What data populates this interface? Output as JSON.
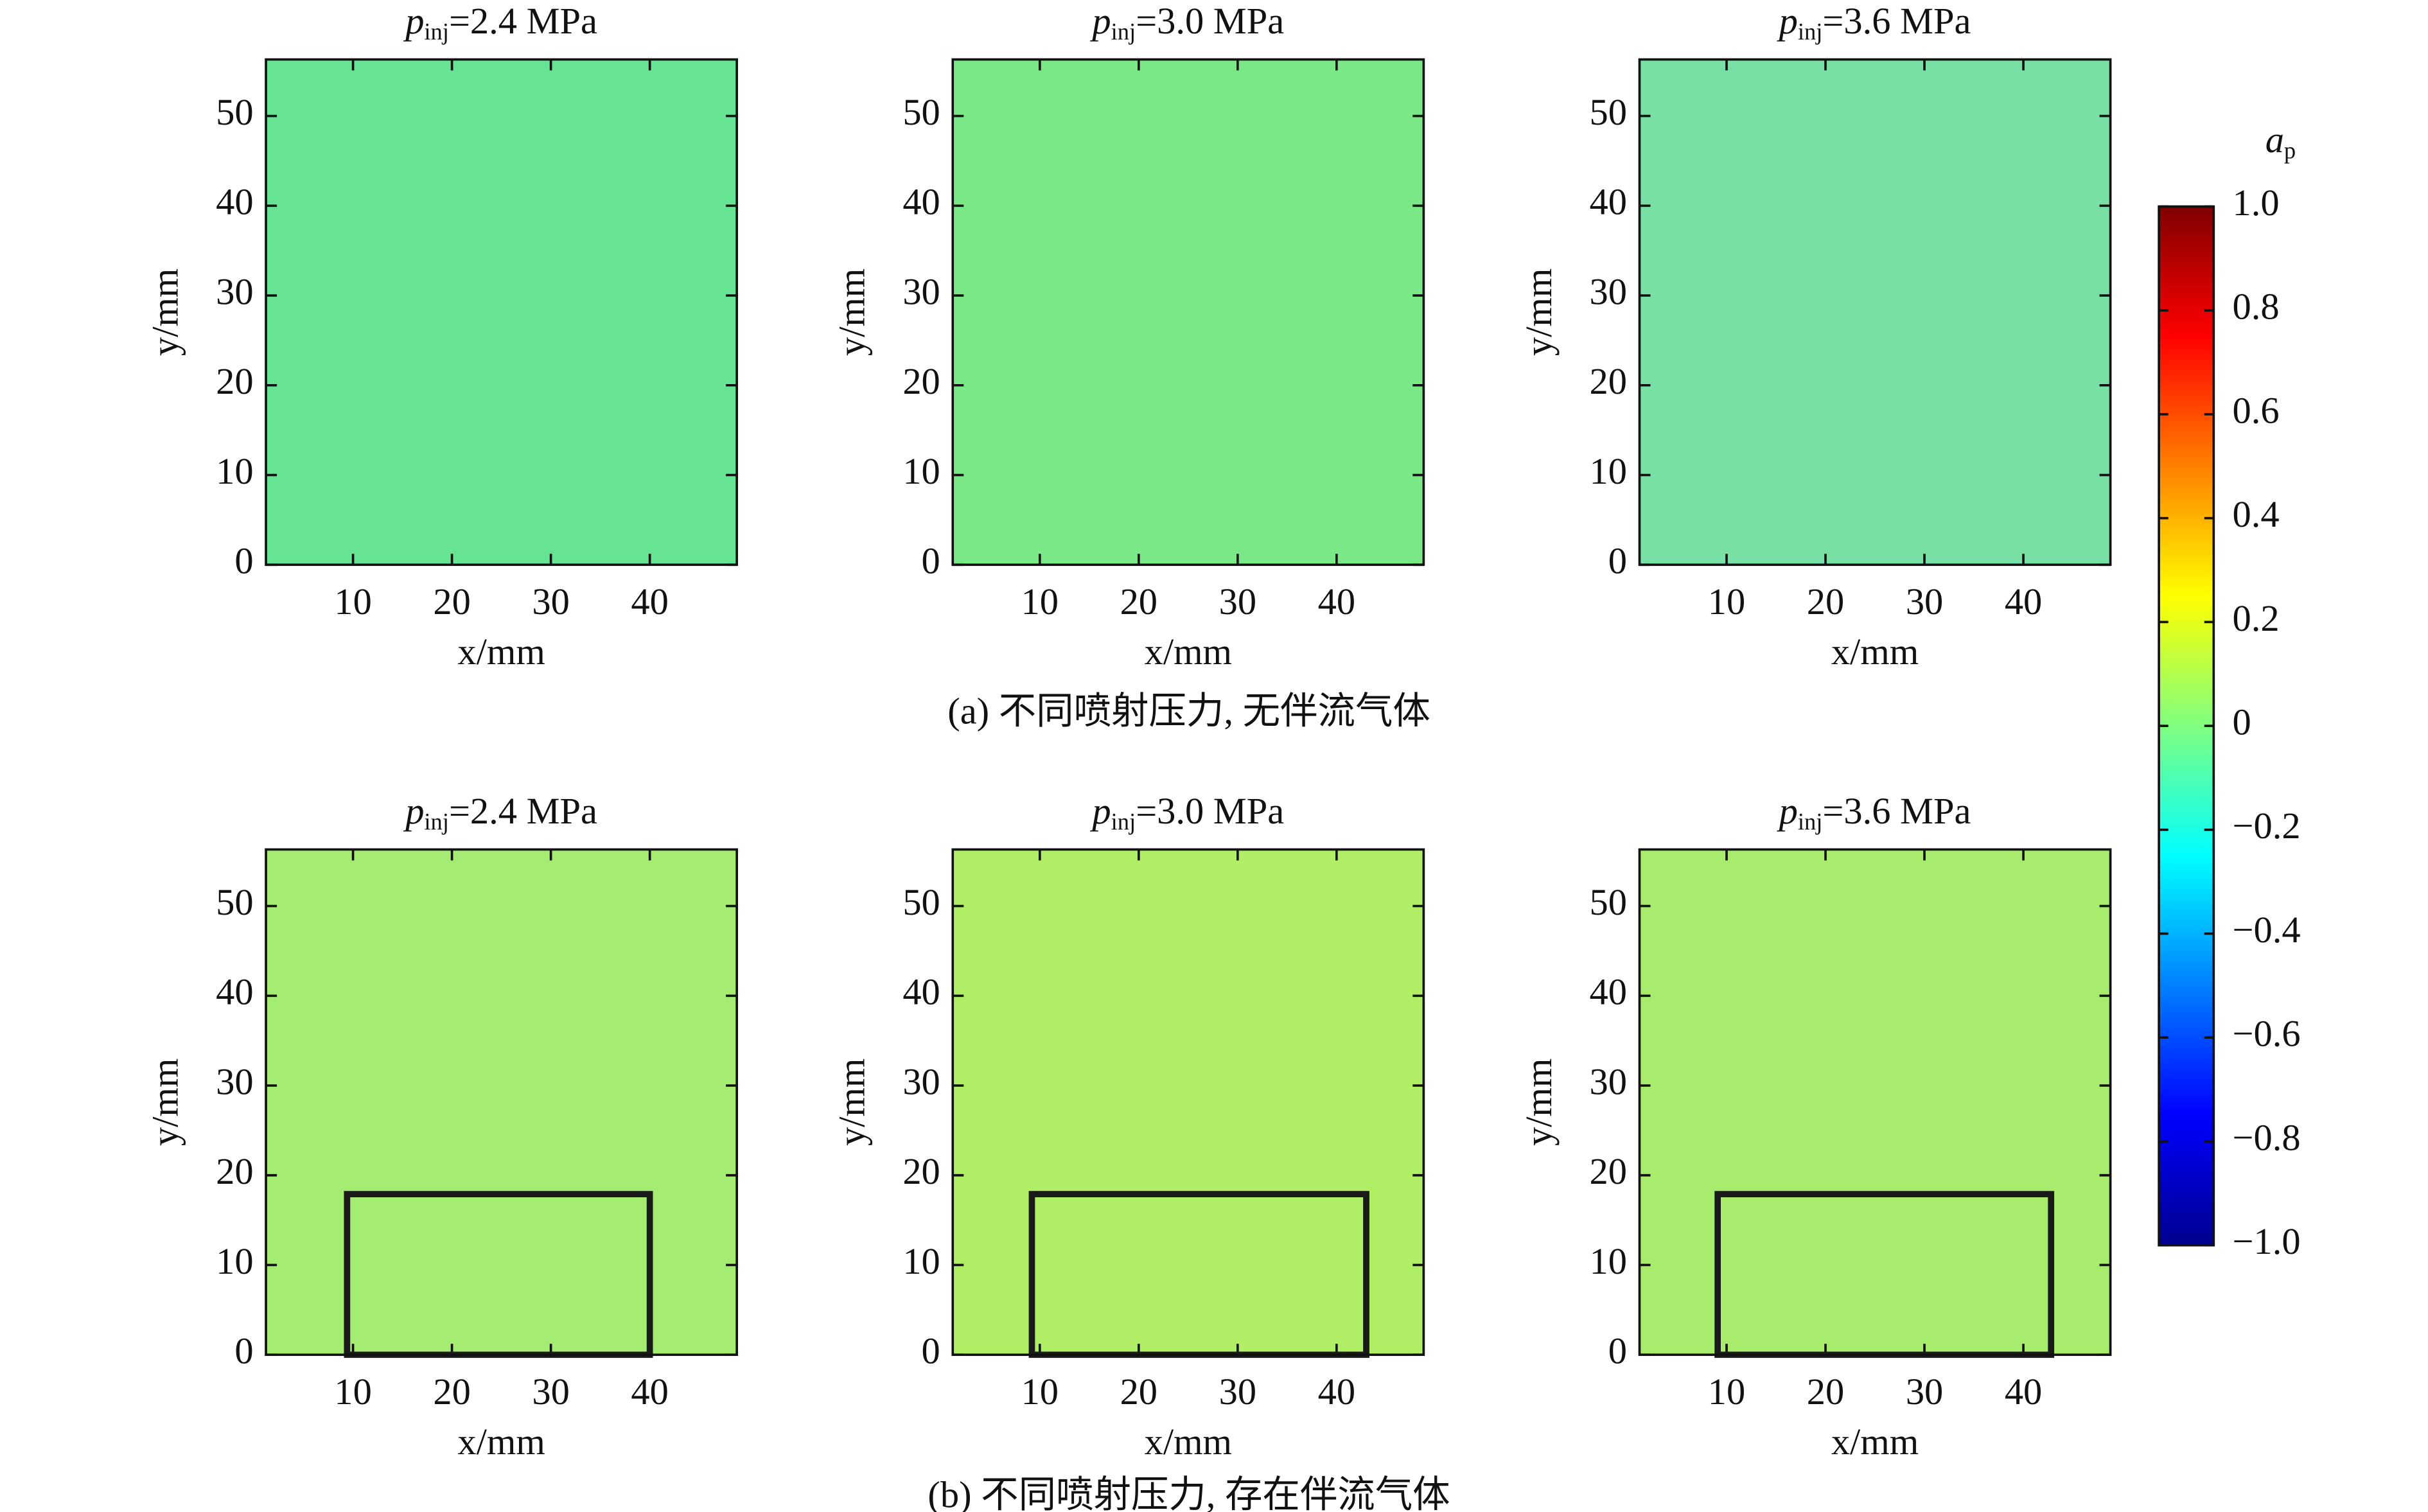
{
  "chart_data": [
    {
      "type": "heatmap",
      "title": [
        "p",
        "inj",
        "=2.4 MPa"
      ],
      "xlabel": "x/mm",
      "ylabel": "y/mm",
      "xlim": [
        1.2,
        48.8
      ],
      "ylim": [
        0,
        56.3
      ],
      "xticks": [
        10,
        20,
        30,
        40
      ],
      "yticks": [
        0,
        10,
        20,
        30,
        40,
        50
      ],
      "field_color": "#66e494"
    },
    {
      "type": "heatmap",
      "title": [
        "p",
        "inj",
        "=3.0 MPa"
      ],
      "xlabel": "x/mm",
      "ylabel": "y/mm",
      "xlim": [
        1.2,
        48.8
      ],
      "ylim": [
        0,
        56.3
      ],
      "xticks": [
        10,
        20,
        30,
        40
      ],
      "yticks": [
        0,
        10,
        20,
        30,
        40,
        50
      ],
      "field_color": "#7ae886"
    },
    {
      "type": "heatmap",
      "title": [
        "p",
        "inj",
        "=3.6 MPa"
      ],
      "xlabel": "x/mm",
      "ylabel": "y/mm",
      "xlim": [
        1.2,
        48.8
      ],
      "ylim": [
        0,
        56.3
      ],
      "xticks": [
        10,
        20,
        30,
        40
      ],
      "yticks": [
        0,
        10,
        20,
        30,
        40,
        50
      ],
      "field_color": "#78e0a4"
    },
    {
      "type": "heatmap",
      "title": [
        "p",
        "inj",
        "=2.4 MPa"
      ],
      "xlabel": "x/mm",
      "ylabel": "y/mm",
      "xlim": [
        1.2,
        48.8
      ],
      "ylim": [
        0,
        56.3
      ],
      "xticks": [
        10,
        20,
        30,
        40
      ],
      "yticks": [
        0,
        10,
        20,
        30,
        40,
        50
      ],
      "field_color": "#a4ec72",
      "box": {
        "x": [
          9.4,
          40
        ],
        "y": [
          0,
          17.9
        ]
      }
    },
    {
      "type": "heatmap",
      "title": [
        "p",
        "inj",
        "=3.0 MPa"
      ],
      "xlabel": "x/mm",
      "ylabel": "y/mm",
      "xlim": [
        1.2,
        48.8
      ],
      "ylim": [
        0,
        56.3
      ],
      "xticks": [
        10,
        20,
        30,
        40
      ],
      "yticks": [
        0,
        10,
        20,
        30,
        40,
        50
      ],
      "field_color": "#b0ee66",
      "box": {
        "x": [
          9.2,
          43
        ],
        "y": [
          0,
          17.9
        ]
      }
    },
    {
      "type": "heatmap",
      "title": [
        "p",
        "inj",
        "=3.6 MPa"
      ],
      "xlabel": "x/mm",
      "ylabel": "y/mm",
      "xlim": [
        1.2,
        48.8
      ],
      "ylim": [
        0,
        56.3
      ],
      "xticks": [
        10,
        20,
        30,
        40
      ],
      "yticks": [
        0,
        10,
        20,
        30,
        40,
        50
      ],
      "field_color": "#a8ec6e",
      "box": {
        "x": [
          9.1,
          42.8
        ],
        "y": [
          0,
          17.9
        ]
      }
    }
  ],
  "colorbar": {
    "label": [
      "a",
      "p"
    ],
    "lim": [
      -1,
      1
    ],
    "ticks": [
      {
        "value": 1,
        "label": "1.0"
      },
      0.8,
      0.6,
      0.4,
      0.2,
      0,
      {
        "value": -0.2,
        "label": "−0.2"
      },
      {
        "value": -0.4,
        "label": "−0.4"
      },
      {
        "value": -0.6,
        "label": "−0.6"
      },
      {
        "value": -0.8,
        "label": "−0.8"
      },
      {
        "value": -1,
        "label": "−1.0"
      }
    ],
    "colormap": [
      "#00008f",
      "#0000ff",
      "#0080ff",
      "#00ffff",
      "#80ff80",
      "#ffff00",
      "#ff8000",
      "#ff0000",
      "#800000"
    ]
  },
  "captions": [
    "(a) 不同喷射压力, 无伴流气体",
    "(b) 不同喷射压力, 存在伴流气体"
  ]
}
